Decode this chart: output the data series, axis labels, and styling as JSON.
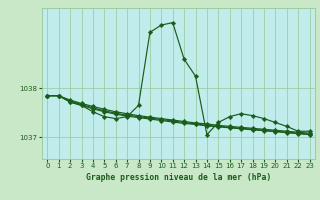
{
  "title": "Graphe pression niveau de la mer (hPa)",
  "bg_color": "#c8e8c8",
  "plot_bg_color": "#c0ecec",
  "grid_color": "#98c898",
  "line_color": "#1a5c1a",
  "xlim": [
    -0.5,
    23.5
  ],
  "ylim": [
    1036.55,
    1039.65
  ],
  "yticks": [
    1037,
    1038
  ],
  "series": [
    [
      1037.85,
      1037.85,
      1037.72,
      1037.65,
      1037.52,
      1037.42,
      1037.38,
      1037.42,
      1037.65,
      1039.15,
      1039.3,
      1039.35,
      1038.6,
      1038.25,
      1037.05,
      1037.3,
      1037.42,
      1037.48,
      1037.44,
      1037.38,
      1037.3,
      1037.22,
      1037.12,
      1037.12
    ],
    [
      1037.85,
      1037.85,
      1037.72,
      1037.65,
      1037.58,
      1037.52,
      1037.47,
      1037.43,
      1037.4,
      1037.37,
      1037.34,
      1037.31,
      1037.28,
      1037.26,
      1037.23,
      1037.21,
      1037.19,
      1037.17,
      1037.15,
      1037.13,
      1037.11,
      1037.09,
      1037.07,
      1037.05
    ],
    [
      1037.85,
      1037.85,
      1037.74,
      1037.67,
      1037.6,
      1037.54,
      1037.49,
      1037.45,
      1037.42,
      1037.39,
      1037.36,
      1037.33,
      1037.3,
      1037.27,
      1037.24,
      1037.22,
      1037.2,
      1037.18,
      1037.16,
      1037.14,
      1037.12,
      1037.1,
      1037.08,
      1037.06
    ],
    [
      1037.85,
      1037.85,
      1037.76,
      1037.69,
      1037.63,
      1037.57,
      1037.52,
      1037.48,
      1037.44,
      1037.41,
      1037.38,
      1037.35,
      1037.32,
      1037.29,
      1037.27,
      1037.24,
      1037.22,
      1037.2,
      1037.18,
      1037.16,
      1037.14,
      1037.12,
      1037.1,
      1037.08
    ]
  ]
}
